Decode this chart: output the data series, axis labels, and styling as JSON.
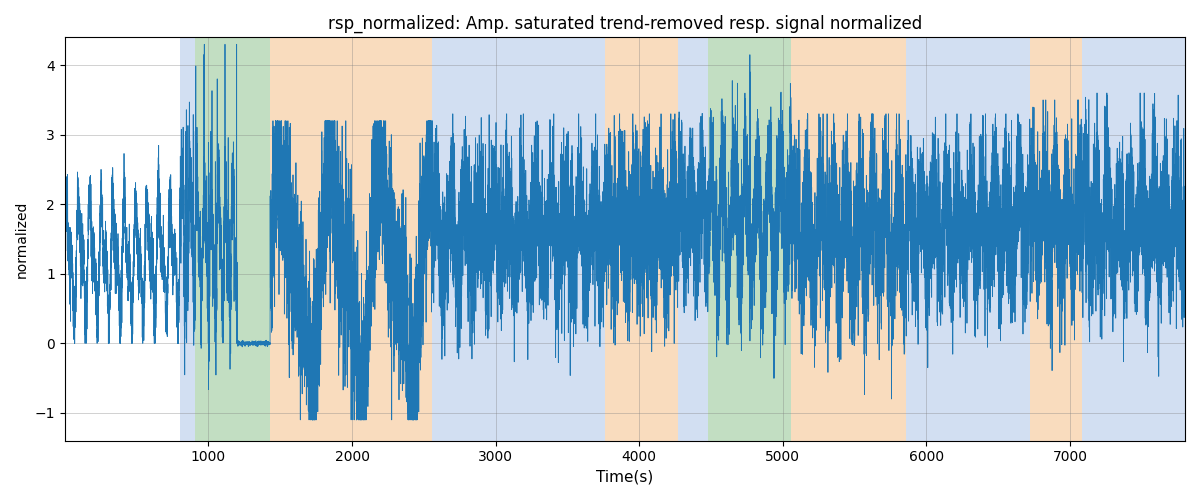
{
  "title": "rsp_normalized: Amp. saturated trend-removed resp. signal normalized",
  "xlabel": "Time(s)",
  "ylabel": "normalized",
  "xlim": [
    0,
    7800
  ],
  "ylim": [
    -1.4,
    4.4
  ],
  "yticks": [
    -1,
    0,
    1,
    2,
    3,
    4
  ],
  "xticks": [
    1000,
    2000,
    3000,
    4000,
    5000,
    6000,
    7000
  ],
  "line_color": "#1f77b4",
  "line_width": 0.6,
  "bands": [
    {
      "xmin": 800,
      "xmax": 910,
      "color": "#aec6e8",
      "alpha": 0.55
    },
    {
      "xmin": 910,
      "xmax": 1430,
      "color": "#90c490",
      "alpha": 0.55
    },
    {
      "xmin": 1430,
      "xmax": 2560,
      "color": "#f5c08a",
      "alpha": 0.55
    },
    {
      "xmin": 2560,
      "xmax": 3760,
      "color": "#aec6e8",
      "alpha": 0.55
    },
    {
      "xmin": 3760,
      "xmax": 4270,
      "color": "#f5c08a",
      "alpha": 0.55
    },
    {
      "xmin": 4270,
      "xmax": 4480,
      "color": "#aec6e8",
      "alpha": 0.55
    },
    {
      "xmin": 4480,
      "xmax": 5060,
      "color": "#90c490",
      "alpha": 0.55
    },
    {
      "xmin": 5060,
      "xmax": 5860,
      "color": "#f5c08a",
      "alpha": 0.55
    },
    {
      "xmin": 5860,
      "xmax": 6720,
      "color": "#aec6e8",
      "alpha": 0.55
    },
    {
      "xmin": 6720,
      "xmax": 7080,
      "color": "#f5c08a",
      "alpha": 0.55
    },
    {
      "xmin": 7080,
      "xmax": 7800,
      "color": "#aec6e8",
      "alpha": 0.55
    }
  ],
  "seed": 1234,
  "n_points": 15600,
  "title_fontsize": 12
}
